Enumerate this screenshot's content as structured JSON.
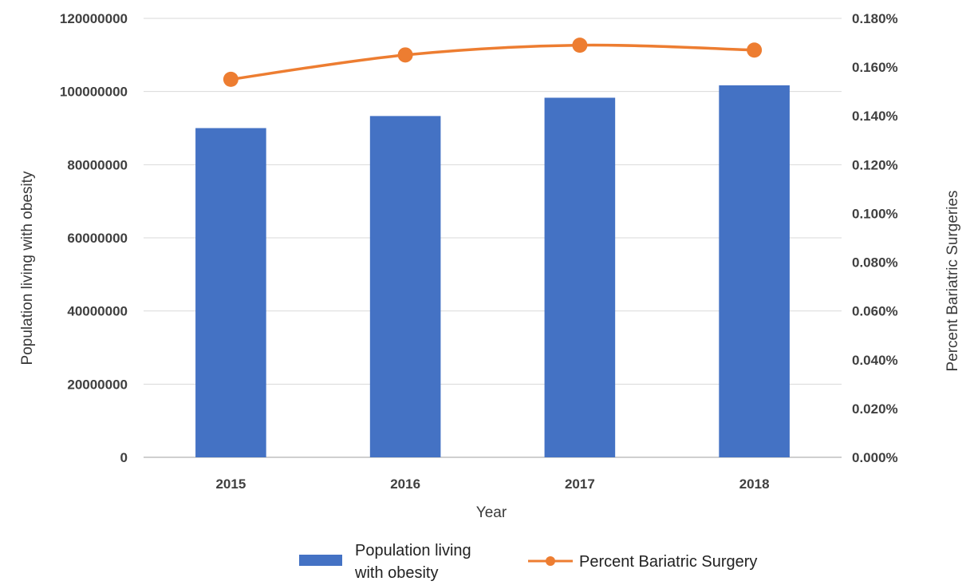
{
  "chart_data": {
    "type": "bar",
    "categories": [
      "2015",
      "2016",
      "2017",
      "2018"
    ],
    "series": [
      {
        "name": "Population living with obesity",
        "type": "bar",
        "axis": "left",
        "color": "#4472C4",
        "values": [
          90000000,
          93300000,
          98300000,
          101700000
        ]
      },
      {
        "name": "Percent Bariatric Surgery",
        "type": "line",
        "axis": "right",
        "color": "#ED7D31",
        "marker": "circle",
        "values": [
          0.155,
          0.165,
          0.169,
          0.167
        ]
      }
    ],
    "xlabel": "Year",
    "ylabel_left": "Population living with obesity",
    "ylabel_right": "Percent Bariatric Surgeries",
    "left_axis": {
      "min": 0,
      "max": 120000000,
      "ticks": [
        "0",
        "20000000",
        "40000000",
        "60000000",
        "80000000",
        "100000000",
        "120000000"
      ],
      "tick_values": [
        0,
        20000000,
        40000000,
        60000000,
        80000000,
        100000000,
        120000000
      ]
    },
    "right_axis": {
      "min": 0,
      "max": 0.18,
      "ticks": [
        "0.000%",
        "0.020%",
        "0.040%",
        "0.060%",
        "0.080%",
        "0.100%",
        "0.120%",
        "0.140%",
        "0.160%",
        "0.180%"
      ],
      "tick_values": [
        0,
        0.02,
        0.04,
        0.06,
        0.08,
        0.1,
        0.12,
        0.14,
        0.16,
        0.18
      ]
    },
    "legend": {
      "placement": "bottom",
      "bar_label_lines": [
        "Population living",
        "with obesity"
      ],
      "line_label": "Percent Bariatric Surgery"
    },
    "grid": true,
    "colors": {
      "bar": "#4472C4",
      "line": "#ED7D31",
      "grid": "#d9d9d9",
      "axis": "#bfbfbf"
    }
  }
}
